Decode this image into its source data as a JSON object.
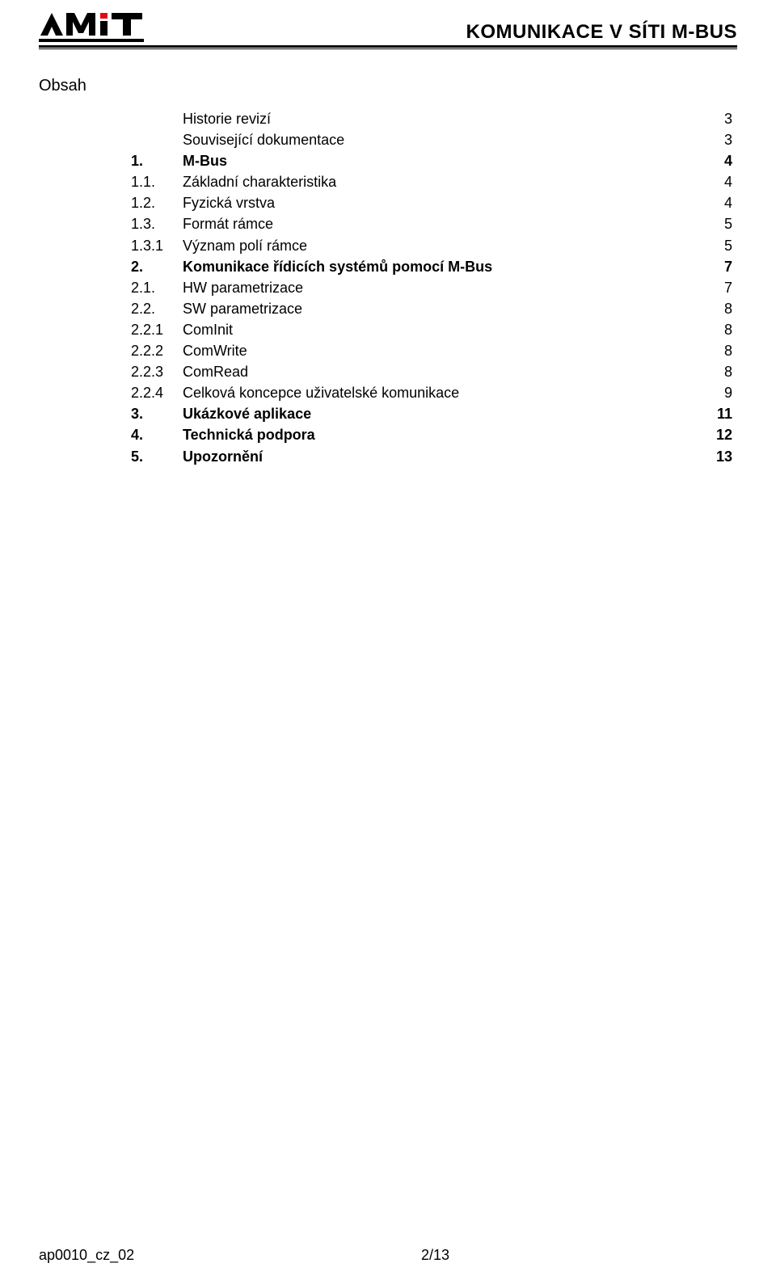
{
  "header": {
    "doc_title": "KOMUNIKACE V SÍTI M-BUS"
  },
  "section_title": "Obsah",
  "toc": [
    {
      "num": "",
      "label": "Historie revizí",
      "page": "3",
      "bold": false,
      "plain": true
    },
    {
      "num": "",
      "label": "Související dokumentace",
      "page": "3",
      "bold": false,
      "plain": true
    },
    {
      "num": "1.",
      "label": "M-Bus",
      "page": "4",
      "bold": true,
      "plain": false
    },
    {
      "num": "1.1.",
      "label": "Základní charakteristika",
      "page": "4",
      "bold": false,
      "plain": false
    },
    {
      "num": "1.2.",
      "label": "Fyzická vrstva",
      "page": "4",
      "bold": false,
      "plain": false
    },
    {
      "num": "1.3.",
      "label": "Formát rámce",
      "page": "5",
      "bold": false,
      "plain": false
    },
    {
      "num": "1.3.1",
      "label": "Význam polí rámce",
      "page": "5",
      "bold": false,
      "plain": false
    },
    {
      "num": "2.",
      "label": "Komunikace řídicích systémů pomocí M-Bus",
      "page": "7",
      "bold": true,
      "plain": false
    },
    {
      "num": "2.1.",
      "label": "HW parametrizace",
      "page": "7",
      "bold": false,
      "plain": false
    },
    {
      "num": "2.2.",
      "label": "SW parametrizace",
      "page": "8",
      "bold": false,
      "plain": false
    },
    {
      "num": "2.2.1",
      "label": "ComInit",
      "page": "8",
      "bold": false,
      "plain": false
    },
    {
      "num": "2.2.2",
      "label": "ComWrite",
      "page": "8",
      "bold": false,
      "plain": false
    },
    {
      "num": "2.2.3",
      "label": "ComRead",
      "page": "8",
      "bold": false,
      "plain": false
    },
    {
      "num": "2.2.4",
      "label": "Celková koncepce uživatelské komunikace",
      "page": "9",
      "bold": false,
      "plain": false
    },
    {
      "num": "3.",
      "label": "Ukázkové aplikace",
      "page": "11",
      "bold": true,
      "plain": false
    },
    {
      "num": "4.",
      "label": "Technická podpora",
      "page": "12",
      "bold": true,
      "plain": false
    },
    {
      "num": "5.",
      "label": "Upozornění",
      "page": "13",
      "bold": true,
      "plain": false
    }
  ],
  "footer": {
    "left": "ap0010_cz_02",
    "center": "2/13"
  },
  "colors": {
    "text": "#000000",
    "background": "#ffffff",
    "logo_red": "#e30613"
  }
}
